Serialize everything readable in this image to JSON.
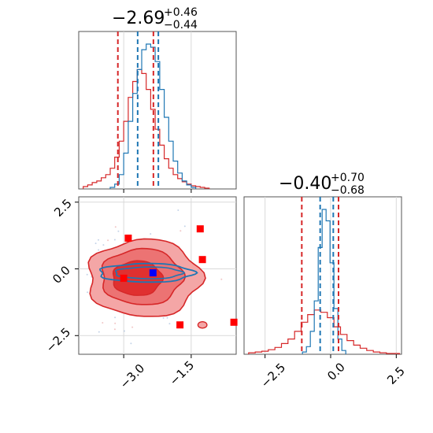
{
  "chart_data": {
    "type": "corner",
    "colors": {
      "chain_a": "#d62728",
      "chain_b": "#1f77b4",
      "markers": "#ff0000",
      "marker_center": "#0000ff"
    },
    "panel_top": {
      "title_value": "−2.69",
      "title_plus": "+0.46",
      "title_minus": "−0.44",
      "xlim": [
        -4.0,
        -0.5
      ],
      "quantiles_red": [
        -3.13,
        -2.34
      ],
      "quantiles_blue": [
        -2.69,
        -2.23
      ],
      "hist_red": {
        "x": [
          -3.85,
          -3.75,
          -3.65,
          -3.55,
          -3.45,
          -3.35,
          -3.25,
          -3.15,
          -3.05,
          -2.95,
          -2.85,
          -2.75,
          -2.65,
          -2.55,
          -2.45,
          -2.35,
          -2.25,
          -2.15,
          -2.05,
          -1.95,
          -1.85,
          -1.75,
          -1.65,
          -1.55,
          -1.45,
          -1.35,
          -1.25,
          -1.15
        ],
        "counts": [
          3,
          5,
          8,
          10,
          14,
          18,
          26,
          40,
          60,
          85,
          115,
          135,
          150,
          145,
          125,
          100,
          75,
          55,
          38,
          26,
          18,
          13,
          9,
          6,
          4,
          3,
          2,
          1
        ]
      },
      "hist_blue": {
        "x": [
          -3.25,
          -3.15,
          -3.05,
          -2.95,
          -2.85,
          -2.75,
          -2.65,
          -2.55,
          -2.45,
          -2.35,
          -2.25,
          -2.15,
          -2.05,
          -1.95,
          -1.85,
          -1.75,
          -1.65,
          -1.55,
          -1.45
        ],
        "counts": [
          2,
          6,
          18,
          45,
          85,
          120,
          150,
          175,
          182,
          178,
          160,
          125,
          90,
          60,
          35,
          20,
          10,
          5,
          2
        ]
      }
    },
    "panel_right": {
      "title_value": "−0.40",
      "title_plus": "+0.70",
      "title_minus": "−0.68",
      "xlim": [
        -3.3,
        2.7
      ],
      "xticks": [
        "−2.5",
        "0.0",
        "2.5"
      ],
      "xtick_values": [
        -2.5,
        0.0,
        2.5
      ],
      "quantiles_red": [
        -1.1,
        0.3
      ],
      "quantiles_blue": [
        -0.4,
        0.1
      ],
      "hist_red": {
        "x": [
          -3.0,
          -2.75,
          -2.5,
          -2.25,
          -2.0,
          -1.75,
          -1.5,
          -1.25,
          -1.0,
          -0.75,
          -0.5,
          -0.25,
          0.0,
          0.25,
          0.5,
          0.75,
          1.0,
          1.25,
          1.5,
          1.75,
          2.0,
          2.25,
          2.5
        ],
        "counts": [
          2,
          3,
          4,
          6,
          9,
          14,
          20,
          30,
          42,
          52,
          58,
          55,
          48,
          36,
          26,
          18,
          12,
          8,
          5,
          3,
          2,
          1,
          1
        ]
      },
      "hist_blue": {
        "x": [
          -1.0,
          -0.85,
          -0.7,
          -0.55,
          -0.4,
          -0.25,
          -0.1,
          0.05,
          0.2,
          0.35,
          0.5
        ],
        "counts": [
          3,
          10,
          30,
          70,
          140,
          190,
          175,
          120,
          60,
          20,
          5
        ]
      }
    },
    "panel_joint": {
      "xlim": [
        -4.0,
        -0.5
      ],
      "ylim": [
        -3.2,
        2.7
      ],
      "xticks": [
        "−3.0",
        "−1.5"
      ],
      "xtick_values": [
        -3.0,
        -1.5
      ],
      "yticks": [
        "2.5",
        "0.0",
        "−2.5"
      ],
      "ytick_values": [
        2.5,
        0.0,
        -2.5
      ],
      "markers": [
        [
          -2.9,
          1.15
        ],
        [
          -1.3,
          1.5
        ],
        [
          -1.25,
          0.35
        ],
        [
          -3.0,
          -0.35
        ],
        [
          -1.75,
          -2.1
        ],
        [
          -0.55,
          -2.0
        ]
      ],
      "marker_center": [
        -2.35,
        -0.15
      ]
    }
  }
}
